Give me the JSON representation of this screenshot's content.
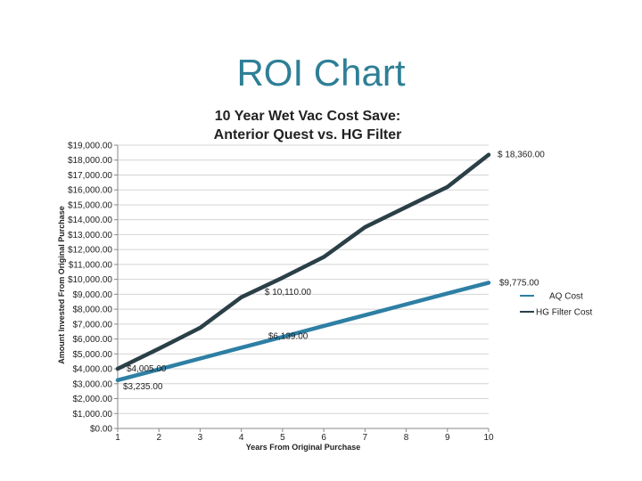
{
  "slide": {
    "title": "ROI Chart"
  },
  "chart_data": {
    "type": "line",
    "title": "10 Year Wet Vac Cost Save:",
    "subtitle": "Anterior Quest vs. HG Filter",
    "xlabel": "Years From Original Purchase",
    "ylabel": "Amount Invested From Original Purchase",
    "x": [
      1,
      2,
      3,
      4,
      5,
      6,
      7,
      8,
      9,
      10
    ],
    "ylim": [
      0,
      19000
    ],
    "ytick_step": 1000,
    "y_tick_labels": [
      "$0.00",
      "$1,000.00",
      "$2,000.00",
      "$3,000.00",
      "$4,000.00",
      "$5,000.00",
      "$6,000.00",
      "$7,000.00",
      "$8,000.00",
      "$9,000.00",
      "$10,000.00",
      "$11,000.00",
      "$12,000.00",
      "$13,000.00",
      "$14,000.00",
      "$15,000.00",
      "$16,000.00",
      "$17,000.00",
      "$18,000.00",
      "$19,000.00"
    ],
    "x_tick_labels": [
      "1",
      "2",
      "3",
      "4",
      "5",
      "6",
      "7",
      "8",
      "9",
      "10"
    ],
    "series": [
      {
        "name": "AQ Cost",
        "color": "#2e7fa4",
        "values": [
          3235,
          3963,
          4690,
          5418,
          6139,
          6873,
          7601,
          8328,
          9056,
          9775
        ]
      },
      {
        "name": "HG Filter Cost",
        "color": "#2b3f47",
        "values": [
          4005,
          5350,
          6750,
          8800,
          10110,
          11500,
          13500,
          14850,
          16200,
          18360
        ]
      }
    ],
    "annotations": [
      {
        "text": "$ 18,360.00",
        "x": 10,
        "y": 18360,
        "series": 1
      },
      {
        "text": "$9,775.00",
        "x": 10,
        "y": 9775,
        "series": 0
      },
      {
        "text": "$ 10,110.00",
        "x": 5,
        "y": 10110,
        "series": 1
      },
      {
        "text": "$6,139.00",
        "x": 5,
        "y": 6139,
        "series": 0
      },
      {
        "text": "$4,005.00",
        "x": 1,
        "y": 4005,
        "series": 1
      },
      {
        "text": "$3,235.00",
        "x": 1,
        "y": 3235,
        "series": 0
      }
    ],
    "legend": "right",
    "grid": true
  }
}
